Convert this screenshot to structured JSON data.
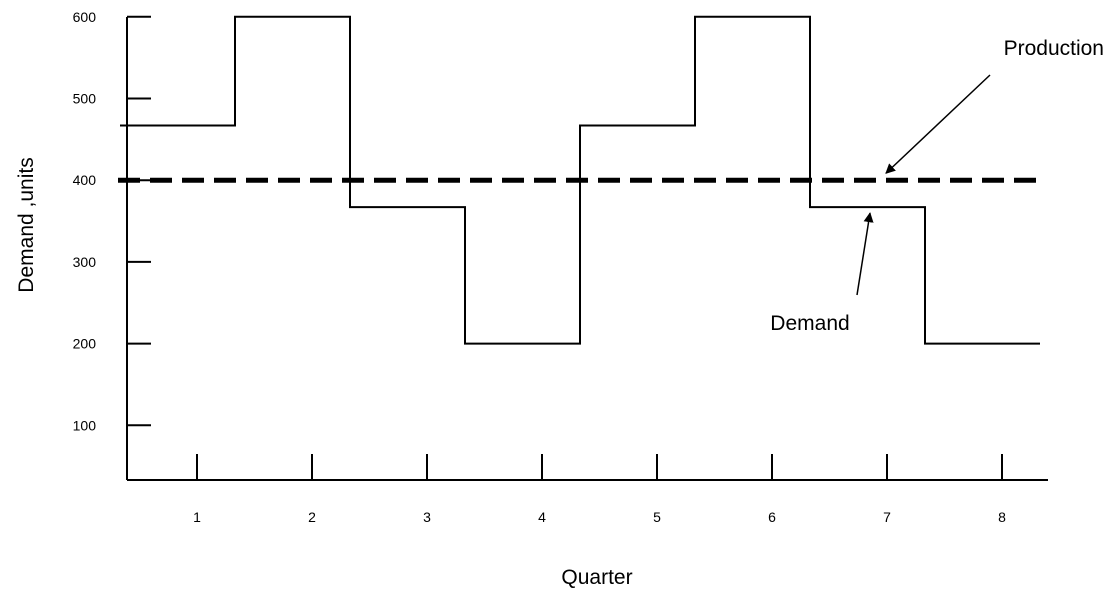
{
  "chart_data": {
    "type": "line",
    "title": "",
    "xlabel": "Quarter",
    "ylabel": "Demand ,units",
    "categories": [
      "1",
      "2",
      "3",
      "4",
      "5",
      "6",
      "7",
      "8"
    ],
    "x_ticks": [
      "1",
      "2",
      "3",
      "4",
      "5",
      "6",
      "7",
      "8"
    ],
    "y_ticks": [
      "100",
      "200",
      "300",
      "400",
      "500",
      "600"
    ],
    "ylim": [
      0,
      600
    ],
    "grid": false,
    "series": [
      {
        "name": "Demand",
        "style": "solid step",
        "color": "#000000",
        "values": [
          467,
          600,
          367,
          200,
          467,
          600,
          367,
          200
        ]
      },
      {
        "name": "Production",
        "style": "dashed",
        "color": "#000000",
        "values": [
          400,
          400,
          400,
          400,
          400,
          400,
          400,
          400
        ]
      }
    ],
    "annotations": [
      {
        "text": "Production",
        "points_to_series": "Production",
        "x": 7,
        "y": 400
      },
      {
        "text": "Demand",
        "points_to_series": "Demand",
        "x": 7,
        "y": 367
      }
    ]
  }
}
